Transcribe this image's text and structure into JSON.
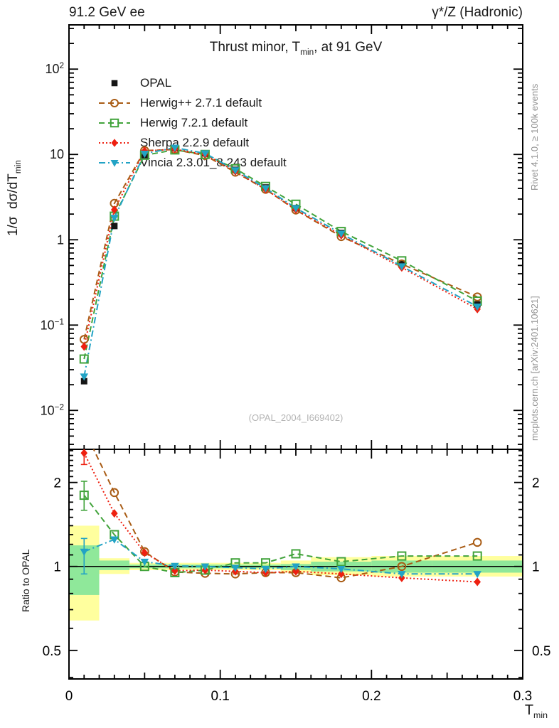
{
  "header": {
    "left": "91.2 GeV ee",
    "right": "γ*/Z (Hadronic)"
  },
  "title": {
    "pre": "Thrust minor, T",
    "sub": "min",
    "post": ", at 91 GeV"
  },
  "watermark": "(OPAL_2004_I669402)",
  "side_notes": {
    "top": "Rivet 4.1.0, ≥ 100k events",
    "bottom": "mcplots.cern.ch [arXiv:2401.10621]"
  },
  "axes": {
    "main_y_label": {
      "pre": "1/σ  dσ/dT",
      "sub": "min"
    },
    "ratio_y_label": "Ratio to OPAL",
    "x_label": {
      "pre": "T",
      "sub": "min"
    }
  },
  "chart_data": [
    {
      "type": "line",
      "panel": "main",
      "title": "Thrust minor, T_min, at 91 GeV",
      "xlabel": "T_min",
      "ylabel": "1/sigma dsigma/dT_min",
      "yscale": "log",
      "xlim": [
        0,
        0.3
      ],
      "ylim": [
        0.0035,
        330
      ],
      "x": [
        0.01,
        0.03,
        0.05,
        0.07,
        0.09,
        0.11,
        0.13,
        0.15,
        0.18,
        0.22,
        0.27
      ],
      "ytick_labels": [
        {
          "v": 100,
          "label": "10^2"
        },
        {
          "v": 10,
          "label": "10"
        },
        {
          "v": 1,
          "label": "1"
        },
        {
          "v": 0.1,
          "label": "10^-1"
        },
        {
          "v": 0.01,
          "label": "10^-2"
        }
      ],
      "xticks": {
        "minor_step": 0.01,
        "medium_step": 0.05,
        "major_step": 0.1
      },
      "series": [
        {
          "name": "OPAL",
          "color": "#161616",
          "marker": "square-filled",
          "line": "none",
          "values": [
            0.022,
            1.45,
            9.8,
            11.9,
            10.3,
            6.6,
            4.1,
            2.35,
            1.2,
            0.52,
            0.175
          ]
        },
        {
          "name": "Herwig++ 2.7.1 default",
          "color": "#a95c15",
          "marker": "circle-open",
          "line": "dash",
          "values": [
            0.068,
            2.67,
            11.1,
            11.4,
            9.7,
            6.2,
            3.9,
            2.23,
            1.09,
            0.52,
            0.214
          ]
        },
        {
          "name": "Herwig 7.2.1 default",
          "color": "#41a33b",
          "marker": "square-open",
          "line": "dash",
          "values": [
            0.04,
            1.89,
            9.8,
            11.3,
            10.0,
            6.8,
            4.22,
            2.61,
            1.25,
            0.567,
            0.191
          ]
        },
        {
          "name": "Sherpa 2.2.9 default",
          "color": "#ee2010",
          "marker": "diamond-filled",
          "line": "dot",
          "values": [
            0.056,
            2.25,
            11.0,
            11.5,
            10.0,
            6.34,
            3.9,
            2.26,
            1.13,
            0.473,
            0.154
          ]
        },
        {
          "name": "Vincia 2.3.01_8.243 default",
          "color": "#22a3c5",
          "marker": "triangle-down-filled",
          "line": "dashdot",
          "values": [
            0.025,
            1.81,
            10.2,
            12.0,
            10.3,
            6.53,
            4.02,
            2.35,
            1.18,
            0.489,
            0.165
          ]
        }
      ]
    },
    {
      "type": "ratio",
      "panel": "ratio",
      "ylabel": "Ratio to OPAL",
      "yscale": "log",
      "ylim": [
        0.395,
        2.63
      ],
      "yticks_major": [
        2,
        1,
        0.5
      ],
      "ytick_major_labels": [
        "2",
        "1",
        "0.5"
      ],
      "yticks_minor": [
        0.4,
        0.6,
        0.7,
        0.8,
        0.9,
        1.1,
        1.2,
        1.3,
        1.4,
        1.5,
        1.6,
        1.7,
        1.8,
        1.9,
        2.1,
        2.2,
        2.3,
        2.4,
        2.5,
        2.6
      ],
      "xtick_major_values": [
        0,
        0.1,
        0.2,
        0.3
      ],
      "xtick_labels": [
        "0",
        "0.1",
        "0.2",
        "0.3"
      ],
      "x": [
        0.01,
        0.03,
        0.05,
        0.07,
        0.09,
        0.11,
        0.13,
        0.15,
        0.18,
        0.22,
        0.27
      ],
      "bin_edges": [
        0,
        0.02,
        0.04,
        0.06,
        0.08,
        0.1,
        0.12,
        0.14,
        0.16,
        0.2,
        0.24,
        0.3
      ],
      "bands": {
        "yellow_color": "#ffff9e",
        "green_color": "#8fe89a",
        "yellow": [
          [
            0.64,
            1.4
          ],
          [
            0.94,
            1.07
          ],
          [
            0.97,
            1.03
          ],
          [
            0.97,
            1.03
          ],
          [
            0.97,
            1.03
          ],
          [
            0.97,
            1.03
          ],
          [
            0.97,
            1.03
          ],
          [
            0.95,
            1.05
          ],
          [
            0.93,
            1.08
          ],
          [
            0.92,
            1.09
          ],
          [
            0.92,
            1.09
          ]
        ],
        "green": [
          [
            0.79,
            1.19
          ],
          [
            0.97,
            1.05
          ],
          [
            0.985,
            1.015
          ],
          [
            0.985,
            1.015
          ],
          [
            0.985,
            1.015
          ],
          [
            0.985,
            1.015
          ],
          [
            0.985,
            1.015
          ],
          [
            0.97,
            1.02
          ],
          [
            0.96,
            1.04
          ],
          [
            0.95,
            1.05
          ],
          [
            0.95,
            1.05
          ]
        ]
      },
      "reference_line": 1,
      "series": [
        {
          "name": "Herwig++ 2.7.1 default",
          "color": "#a95c15",
          "marker": "circle-open",
          "line": "dash",
          "ratios": [
            3.1,
            1.84,
            1.13,
            0.955,
            0.945,
            0.94,
            0.95,
            0.95,
            0.91,
            1.0,
            1.22
          ],
          "err": [
            null,
            null,
            null,
            null,
            null,
            null,
            null,
            null,
            null,
            null,
            null
          ]
        },
        {
          "name": "Herwig 7.2.1 default",
          "color": "#41a33b",
          "marker": "square-open",
          "line": "dash",
          "ratios": [
            1.8,
            1.3,
            1.0,
            0.95,
            0.97,
            1.03,
            1.03,
            1.11,
            1.04,
            1.09,
            1.09
          ],
          "err": [
            [
              1.59,
              2.02
            ],
            null,
            null,
            null,
            null,
            null,
            null,
            null,
            null,
            null,
            null
          ]
        },
        {
          "name": "Sherpa 2.2.9 default",
          "color": "#ee2010",
          "marker": "diamond-filled",
          "line": "dot",
          "ratios": [
            2.55,
            1.55,
            1.12,
            0.965,
            0.97,
            0.96,
            0.95,
            0.96,
            0.94,
            0.91,
            0.88
          ],
          "err": [
            [
              2.32,
              2.75
            ],
            null,
            null,
            null,
            null,
            null,
            null,
            null,
            null,
            null,
            null
          ]
        },
        {
          "name": "Vincia 2.3.01_8.243 default",
          "color": "#22a3c5",
          "marker": "triangle-down-filled",
          "line": "dashdot",
          "ratios": [
            1.13,
            1.25,
            1.04,
            1.005,
            1.0,
            0.99,
            0.98,
            1.0,
            0.98,
            0.94,
            0.94
          ],
          "err": [
            [
              0.94,
              1.26
            ],
            null,
            null,
            null,
            null,
            null,
            null,
            null,
            null,
            null,
            null
          ]
        }
      ]
    }
  ]
}
